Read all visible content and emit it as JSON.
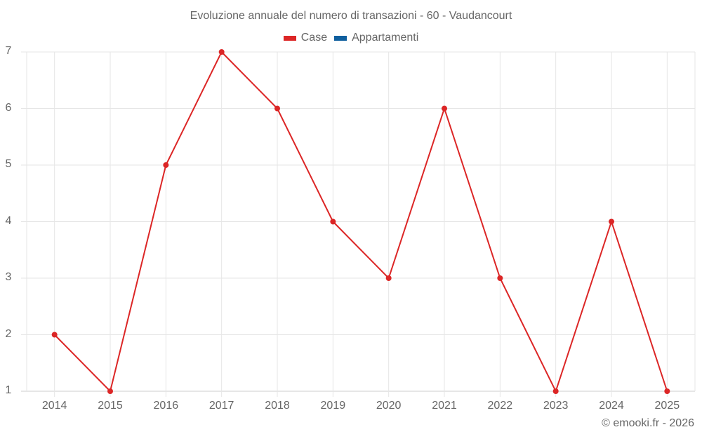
{
  "title": "Evoluzione annuale del numero di transazioni - 60 - Vaudancourt",
  "legend": [
    {
      "label": "Case",
      "color": "#dc2626"
    },
    {
      "label": "Appartamenti",
      "color": "#0f5f9e"
    }
  ],
  "credit": "© emooki.fr - 2026",
  "colors": {
    "line": "#dc2626",
    "grid": "#e6e6e6",
    "axis": "#cccccc",
    "text": "#666666"
  },
  "chart_data": {
    "type": "line",
    "title": "Evoluzione annuale del numero di transazioni - 60 - Vaudancourt",
    "xlabel": "",
    "ylabel": "",
    "categories": [
      "2014",
      "2015",
      "2016",
      "2017",
      "2018",
      "2019",
      "2020",
      "2021",
      "2022",
      "2023",
      "2024",
      "2025"
    ],
    "series": [
      {
        "name": "Case",
        "color": "#dc2626",
        "values": [
          2,
          1,
          5,
          7,
          6,
          4,
          3,
          6,
          3,
          1,
          4,
          1
        ]
      },
      {
        "name": "Appartamenti",
        "color": "#0f5f9e",
        "values": []
      }
    ],
    "ylim": [
      1,
      7
    ],
    "yticks": [
      1,
      2,
      3,
      4,
      5,
      6,
      7
    ],
    "grid": true,
    "legend_position": "top"
  }
}
